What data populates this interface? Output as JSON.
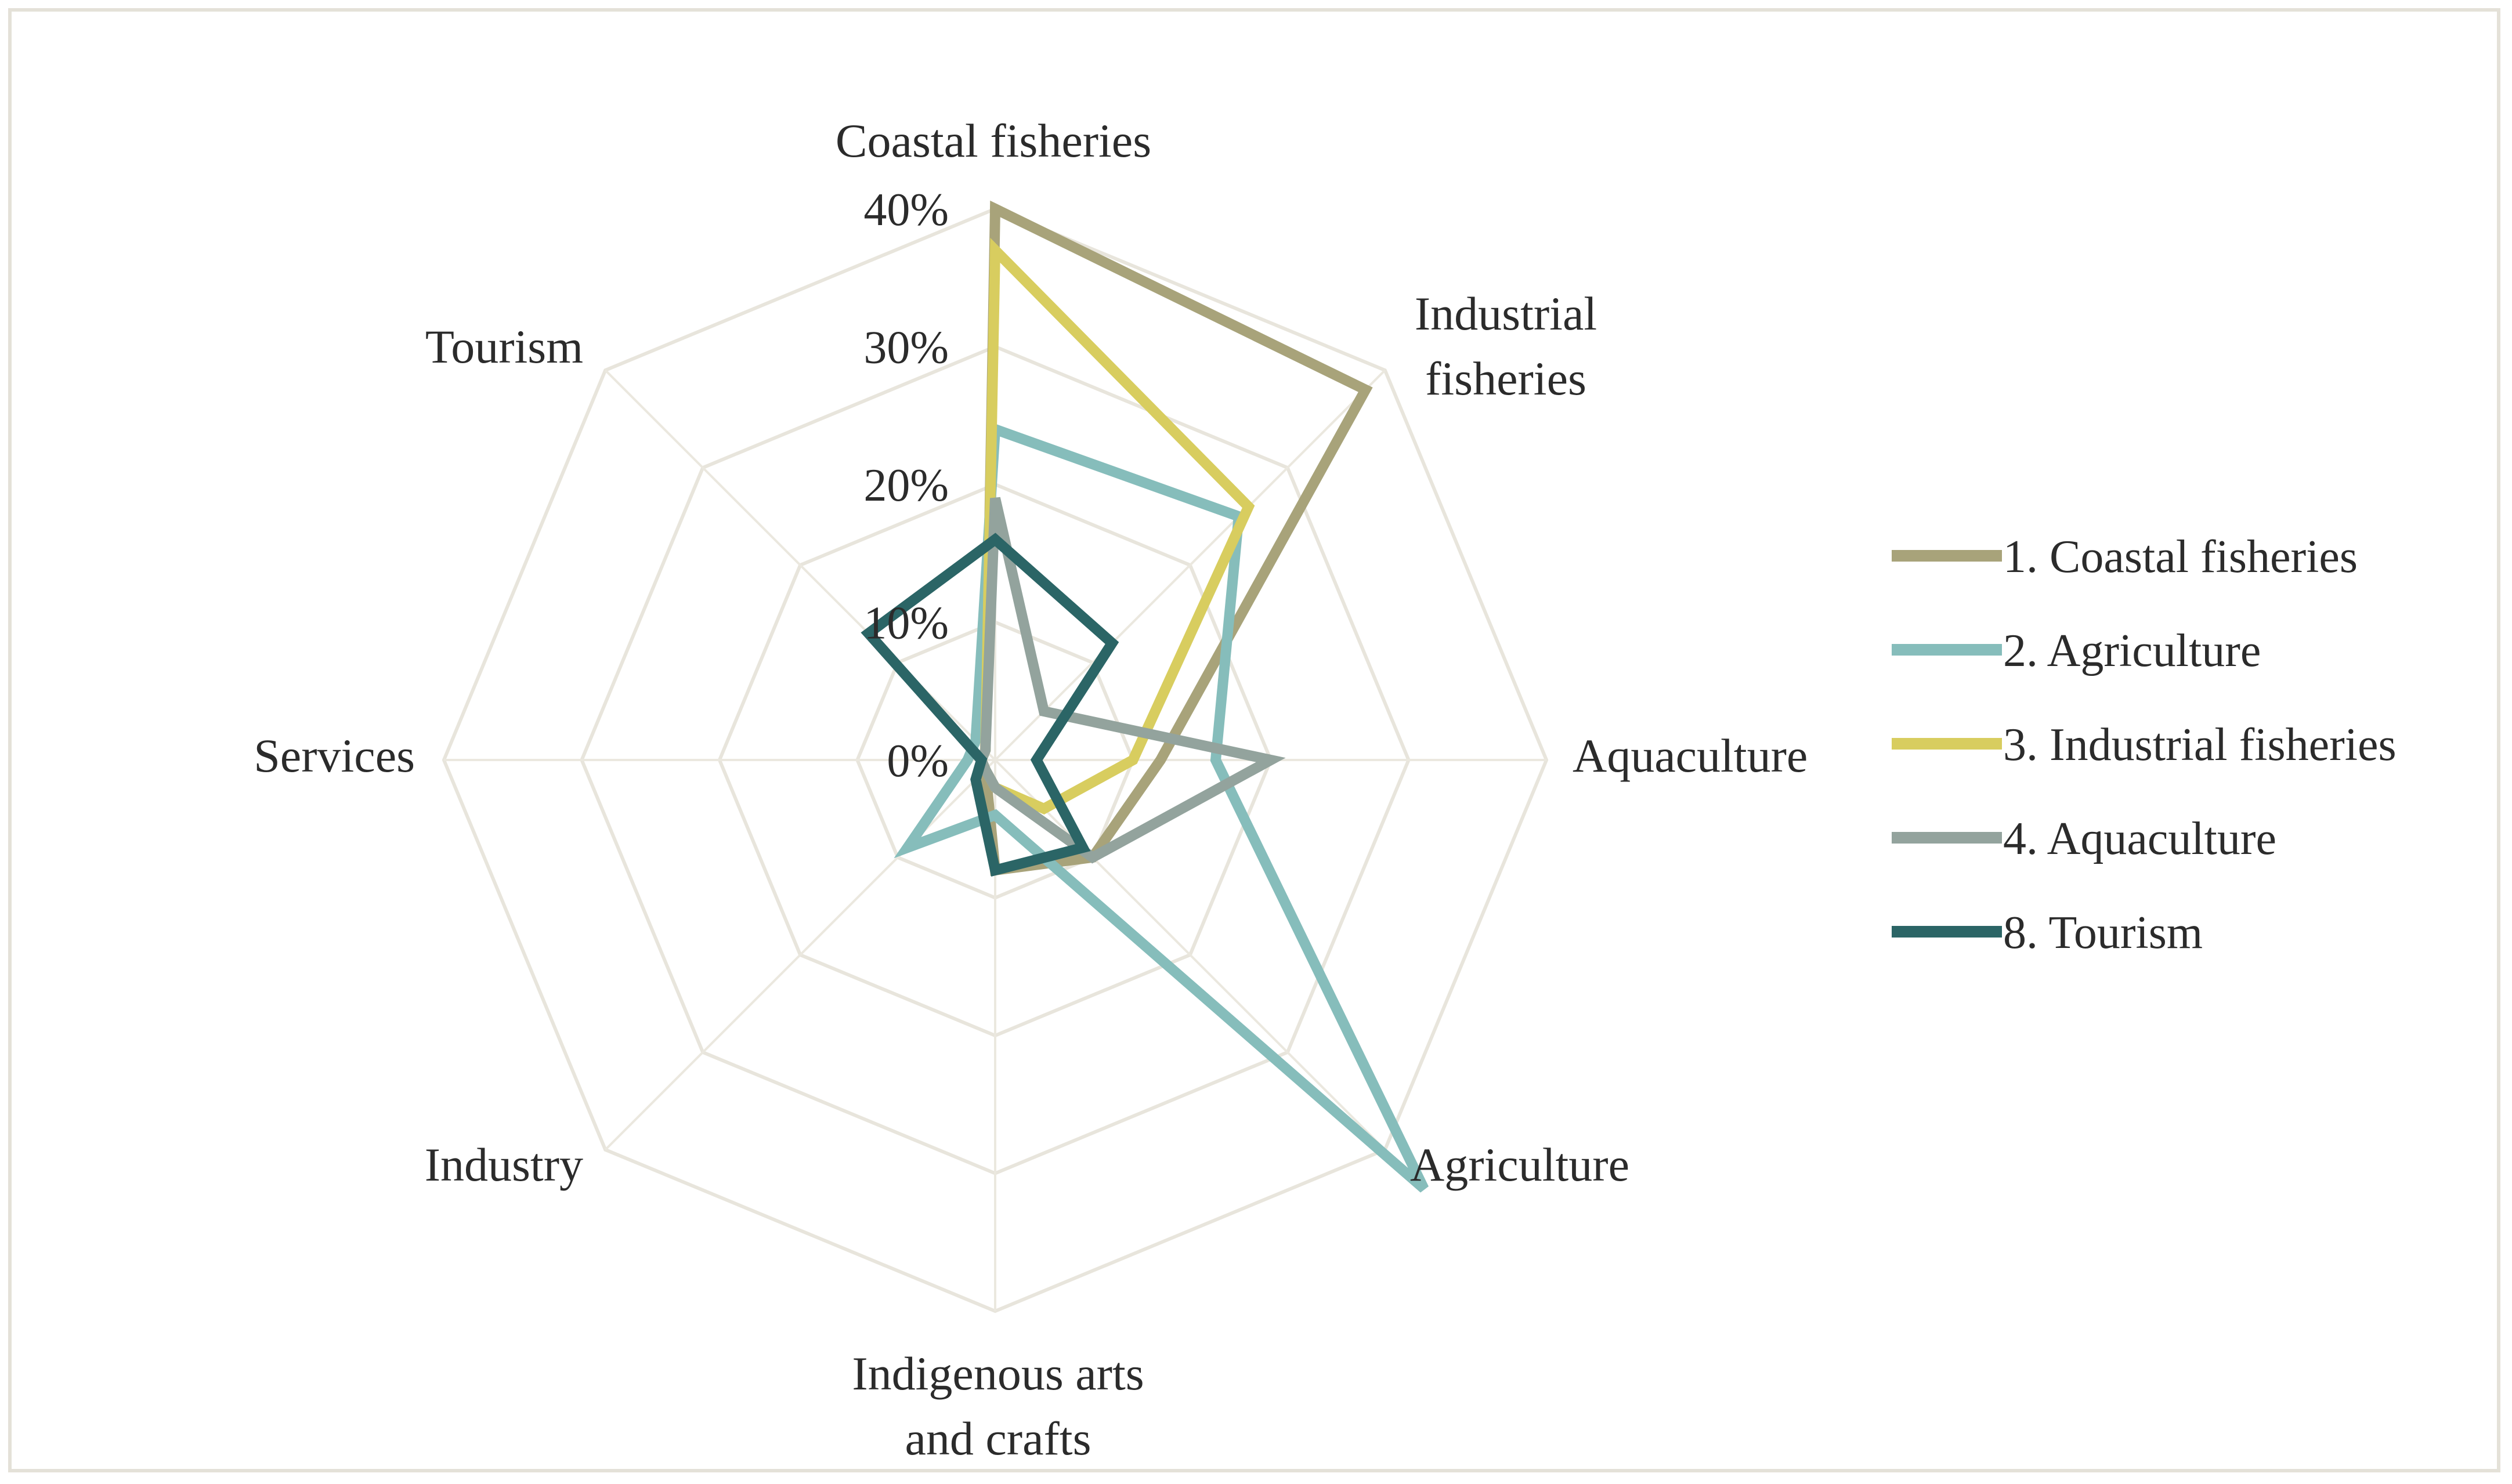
{
  "chart_data": {
    "type": "radar",
    "title": "",
    "categories": [
      "Coastal fisheries",
      "Industrial fisheries",
      "Aquaculture",
      "Agriculture",
      "Indigenous arts and crafts",
      "Industry",
      "Services",
      "Tourism"
    ],
    "category_lines": [
      [
        "Coastal fisheries"
      ],
      [
        "Industrial",
        "fisheries"
      ],
      [
        "Aquaculture"
      ],
      [
        "Agriculture"
      ],
      [
        "Indigenous arts",
        "and crafts"
      ],
      [
        "Industry"
      ],
      [
        "Services"
      ],
      [
        "Tourism"
      ]
    ],
    "rlim": [
      0,
      40
    ],
    "ticks": [
      0,
      10,
      20,
      30,
      40
    ],
    "tick_labels": [
      "0%",
      "10%",
      "20%",
      "30%",
      "40%"
    ],
    "legend_position": "right",
    "series": [
      {
        "name": "1. Coastal fisheries",
        "color": "#a8a37a",
        "values": [
          40,
          38,
          12,
          10,
          8,
          1,
          1,
          1
        ]
      },
      {
        "name": "2. Agriculture",
        "color": "#86bdbb",
        "values": [
          24,
          25,
          16,
          44,
          4,
          9,
          2,
          2
        ]
      },
      {
        "name": "3. Industrial fisheries",
        "color": "#d8cd5f",
        "values": [
          37,
          26,
          10,
          5,
          2,
          1,
          1,
          1
        ]
      },
      {
        "name": "4. Aquaculture",
        "color": "#93a39d",
        "values": [
          19,
          5,
          20,
          10,
          2,
          1,
          1,
          1
        ]
      },
      {
        "name": "8. Tourism",
        "color": "#2b6566",
        "values": [
          16,
          12,
          3,
          9,
          8,
          2,
          1,
          13
        ]
      }
    ]
  }
}
